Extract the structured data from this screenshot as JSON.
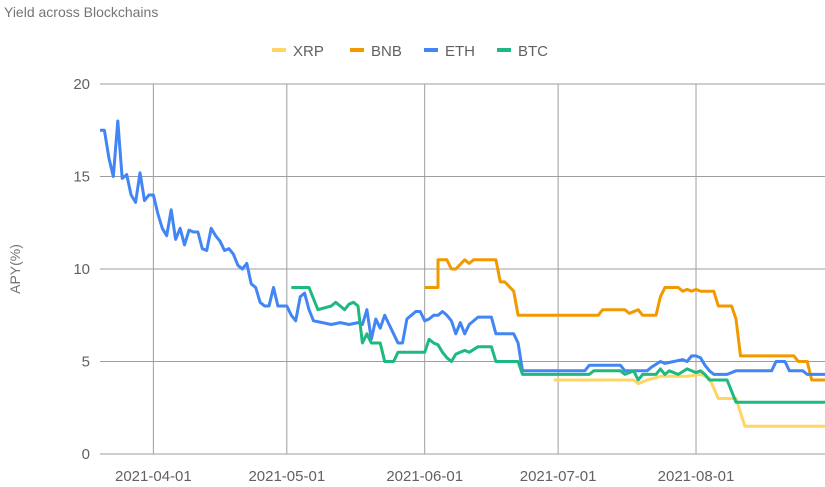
{
  "chart_data": {
    "type": "line",
    "title": "Yield across Blockchains",
    "xlabel": "",
    "ylabel": "APY(%)",
    "ylim": [
      0,
      20
    ],
    "xlim": [
      "2021-03-20",
      "2021-08-30"
    ],
    "y_ticks": [
      "0",
      "5",
      "10",
      "15",
      "20"
    ],
    "x_ticks": [
      "2021-04-01",
      "2021-05-01",
      "2021-06-01",
      "2021-07-01",
      "2021-08-01"
    ],
    "grid": "vertical and horizontal",
    "legend_position": "top-center",
    "series": [
      {
        "name": "XRP",
        "color": "#FDD663",
        "points": [
          [
            "2021-06-30",
            4.0
          ],
          [
            "2021-07-10",
            4.0
          ],
          [
            "2021-07-18",
            4.0
          ],
          [
            "2021-07-19",
            3.8
          ],
          [
            "2021-07-21",
            4.0
          ],
          [
            "2021-07-24",
            4.2
          ],
          [
            "2021-07-30",
            4.2
          ],
          [
            "2021-08-02",
            4.3
          ],
          [
            "2021-08-04",
            4.1
          ],
          [
            "2021-08-06",
            3.0
          ],
          [
            "2021-08-10",
            3.0
          ],
          [
            "2021-08-12",
            1.5
          ],
          [
            "2021-08-30",
            1.5
          ]
        ]
      },
      {
        "name": "BNB",
        "color": "#F29900",
        "points": [
          [
            "2021-06-01",
            9.0
          ],
          [
            "2021-06-04",
            9.0
          ],
          [
            "2021-06-04",
            10.5
          ],
          [
            "2021-06-06",
            10.5
          ],
          [
            "2021-06-07",
            10.0
          ],
          [
            "2021-06-08",
            10.0
          ],
          [
            "2021-06-10",
            10.5
          ],
          [
            "2021-06-11",
            10.3
          ],
          [
            "2021-06-12",
            10.5
          ],
          [
            "2021-06-17",
            10.5
          ],
          [
            "2021-06-18",
            9.3
          ],
          [
            "2021-06-19",
            9.3
          ],
          [
            "2021-06-21",
            8.8
          ],
          [
            "2021-06-22",
            7.5
          ],
          [
            "2021-07-10",
            7.5
          ],
          [
            "2021-07-11",
            7.8
          ],
          [
            "2021-07-16",
            7.8
          ],
          [
            "2021-07-17",
            7.6
          ],
          [
            "2021-07-19",
            7.8
          ],
          [
            "2021-07-20",
            7.5
          ],
          [
            "2021-07-23",
            7.5
          ],
          [
            "2021-07-24",
            8.5
          ],
          [
            "2021-07-25",
            9.0
          ],
          [
            "2021-07-28",
            9.0
          ],
          [
            "2021-07-29",
            8.8
          ],
          [
            "2021-07-30",
            8.9
          ],
          [
            "2021-07-31",
            8.8
          ],
          [
            "2021-08-01",
            8.9
          ],
          [
            "2021-08-02",
            8.8
          ],
          [
            "2021-08-05",
            8.8
          ],
          [
            "2021-08-06",
            8.0
          ],
          [
            "2021-08-09",
            8.0
          ],
          [
            "2021-08-10",
            7.3
          ],
          [
            "2021-08-11",
            5.3
          ],
          [
            "2021-08-23",
            5.3
          ],
          [
            "2021-08-24",
            5.0
          ],
          [
            "2021-08-26",
            5.0
          ],
          [
            "2021-08-27",
            4.0
          ],
          [
            "2021-08-30",
            4.0
          ]
        ]
      },
      {
        "name": "ETH",
        "color": "#4285F4",
        "points": [
          [
            "2021-03-20",
            17.5
          ],
          [
            "2021-03-21",
            17.5
          ],
          [
            "2021-03-22",
            16.0
          ],
          [
            "2021-03-23",
            15.0
          ],
          [
            "2021-03-24",
            18.0
          ],
          [
            "2021-03-25",
            14.9
          ],
          [
            "2021-03-26",
            15.1
          ],
          [
            "2021-03-27",
            14.0
          ],
          [
            "2021-03-28",
            13.6
          ],
          [
            "2021-03-29",
            15.2
          ],
          [
            "2021-03-30",
            13.7
          ],
          [
            "2021-03-31",
            14.0
          ],
          [
            "2021-04-01",
            14.0
          ],
          [
            "2021-04-02",
            13.0
          ],
          [
            "2021-04-03",
            12.2
          ],
          [
            "2021-04-04",
            11.8
          ],
          [
            "2021-04-05",
            13.2
          ],
          [
            "2021-04-06",
            11.6
          ],
          [
            "2021-04-07",
            12.2
          ],
          [
            "2021-04-08",
            11.3
          ],
          [
            "2021-04-09",
            12.1
          ],
          [
            "2021-04-10",
            12.0
          ],
          [
            "2021-04-11",
            12.0
          ],
          [
            "2021-04-12",
            11.1
          ],
          [
            "2021-04-13",
            11.0
          ],
          [
            "2021-04-14",
            12.2
          ],
          [
            "2021-04-15",
            11.8
          ],
          [
            "2021-04-16",
            11.5
          ],
          [
            "2021-04-17",
            11.0
          ],
          [
            "2021-04-18",
            11.1
          ],
          [
            "2021-04-19",
            10.8
          ],
          [
            "2021-04-20",
            10.2
          ],
          [
            "2021-04-21",
            10.0
          ],
          [
            "2021-04-22",
            10.3
          ],
          [
            "2021-04-23",
            9.2
          ],
          [
            "2021-04-24",
            9.0
          ],
          [
            "2021-04-25",
            8.2
          ],
          [
            "2021-04-26",
            8.0
          ],
          [
            "2021-04-27",
            8.0
          ],
          [
            "2021-04-28",
            9.0
          ],
          [
            "2021-04-29",
            8.0
          ],
          [
            "2021-05-01",
            8.0
          ],
          [
            "2021-05-02",
            7.5
          ],
          [
            "2021-05-03",
            7.2
          ],
          [
            "2021-05-04",
            8.5
          ],
          [
            "2021-05-05",
            8.7
          ],
          [
            "2021-05-06",
            7.8
          ],
          [
            "2021-05-07",
            7.2
          ],
          [
            "2021-05-09",
            7.1
          ],
          [
            "2021-05-11",
            7.0
          ],
          [
            "2021-05-13",
            7.1
          ],
          [
            "2021-05-15",
            7.0
          ],
          [
            "2021-05-17",
            7.1
          ],
          [
            "2021-05-18",
            7.0
          ],
          [
            "2021-05-19",
            7.8
          ],
          [
            "2021-05-20",
            6.2
          ],
          [
            "2021-05-21",
            7.3
          ],
          [
            "2021-05-22",
            6.8
          ],
          [
            "2021-05-23",
            7.5
          ],
          [
            "2021-05-24",
            7.0
          ],
          [
            "2021-05-25",
            6.5
          ],
          [
            "2021-05-26",
            6.0
          ],
          [
            "2021-05-27",
            6.0
          ],
          [
            "2021-05-28",
            7.3
          ],
          [
            "2021-05-29",
            7.5
          ],
          [
            "2021-05-30",
            7.7
          ],
          [
            "2021-05-31",
            7.7
          ],
          [
            "2021-06-01",
            7.2
          ],
          [
            "2021-06-02",
            7.3
          ],
          [
            "2021-06-03",
            7.5
          ],
          [
            "2021-06-04",
            7.5
          ],
          [
            "2021-06-05",
            7.7
          ],
          [
            "2021-06-06",
            7.5
          ],
          [
            "2021-06-07",
            7.2
          ],
          [
            "2021-06-08",
            6.5
          ],
          [
            "2021-06-09",
            7.1
          ],
          [
            "2021-06-10",
            6.5
          ],
          [
            "2021-06-11",
            7.0
          ],
          [
            "2021-06-13",
            7.4
          ],
          [
            "2021-06-16",
            7.4
          ],
          [
            "2021-06-17",
            6.5
          ],
          [
            "2021-06-21",
            6.5
          ],
          [
            "2021-06-22",
            6.0
          ],
          [
            "2021-06-23",
            4.5
          ],
          [
            "2021-07-07",
            4.5
          ],
          [
            "2021-07-08",
            4.8
          ],
          [
            "2021-07-15",
            4.8
          ],
          [
            "2021-07-16",
            4.5
          ],
          [
            "2021-07-21",
            4.5
          ],
          [
            "2021-07-22",
            4.7
          ],
          [
            "2021-07-24",
            5.0
          ],
          [
            "2021-07-25",
            4.9
          ],
          [
            "2021-07-27",
            5.0
          ],
          [
            "2021-07-29",
            5.1
          ],
          [
            "2021-07-30",
            5.0
          ],
          [
            "2021-07-31",
            5.3
          ],
          [
            "2021-08-01",
            5.3
          ],
          [
            "2021-08-02",
            5.2
          ],
          [
            "2021-08-03",
            4.8
          ],
          [
            "2021-08-04",
            4.5
          ],
          [
            "2021-08-05",
            4.3
          ],
          [
            "2021-08-08",
            4.3
          ],
          [
            "2021-08-10",
            4.5
          ],
          [
            "2021-08-18",
            4.5
          ],
          [
            "2021-08-19",
            5.0
          ],
          [
            "2021-08-21",
            5.0
          ],
          [
            "2021-08-22",
            4.5
          ],
          [
            "2021-08-25",
            4.5
          ],
          [
            "2021-08-26",
            4.3
          ],
          [
            "2021-08-30",
            4.3
          ]
        ]
      },
      {
        "name": "BTC",
        "color": "#1DB980",
        "points": [
          [
            "2021-05-02",
            9.0
          ],
          [
            "2021-05-06",
            9.0
          ],
          [
            "2021-05-08",
            7.8
          ],
          [
            "2021-05-11",
            8.0
          ],
          [
            "2021-05-12",
            8.2
          ],
          [
            "2021-05-13",
            8.0
          ],
          [
            "2021-05-14",
            7.8
          ],
          [
            "2021-05-15",
            8.1
          ],
          [
            "2021-05-16",
            8.2
          ],
          [
            "2021-05-17",
            8.0
          ],
          [
            "2021-05-18",
            6.0
          ],
          [
            "2021-05-19",
            6.5
          ],
          [
            "2021-05-20",
            6.0
          ],
          [
            "2021-05-22",
            6.0
          ],
          [
            "2021-05-23",
            5.0
          ],
          [
            "2021-05-25",
            5.0
          ],
          [
            "2021-05-26",
            5.5
          ],
          [
            "2021-06-01",
            5.5
          ],
          [
            "2021-06-02",
            6.2
          ],
          [
            "2021-06-03",
            6.0
          ],
          [
            "2021-06-04",
            5.9
          ],
          [
            "2021-06-05",
            5.5
          ],
          [
            "2021-06-06",
            5.2
          ],
          [
            "2021-06-07",
            5.0
          ],
          [
            "2021-06-08",
            5.4
          ],
          [
            "2021-06-10",
            5.6
          ],
          [
            "2021-06-11",
            5.5
          ],
          [
            "2021-06-13",
            5.8
          ],
          [
            "2021-06-16",
            5.8
          ],
          [
            "2021-06-17",
            5.0
          ],
          [
            "2021-06-22",
            5.0
          ],
          [
            "2021-06-23",
            4.3
          ],
          [
            "2021-07-08",
            4.3
          ],
          [
            "2021-07-09",
            4.5
          ],
          [
            "2021-07-15",
            4.5
          ],
          [
            "2021-07-16",
            4.3
          ],
          [
            "2021-07-18",
            4.5
          ],
          [
            "2021-07-19",
            4.0
          ],
          [
            "2021-07-20",
            4.3
          ],
          [
            "2021-07-23",
            4.3
          ],
          [
            "2021-07-24",
            4.6
          ],
          [
            "2021-07-25",
            4.3
          ],
          [
            "2021-07-26",
            4.5
          ],
          [
            "2021-07-28",
            4.3
          ],
          [
            "2021-07-30",
            4.6
          ],
          [
            "2021-08-01",
            4.4
          ],
          [
            "2021-08-02",
            4.5
          ],
          [
            "2021-08-03",
            4.3
          ],
          [
            "2021-08-04",
            4.0
          ],
          [
            "2021-08-08",
            4.0
          ],
          [
            "2021-08-10",
            2.8
          ],
          [
            "2021-08-30",
            2.8
          ]
        ]
      }
    ]
  }
}
